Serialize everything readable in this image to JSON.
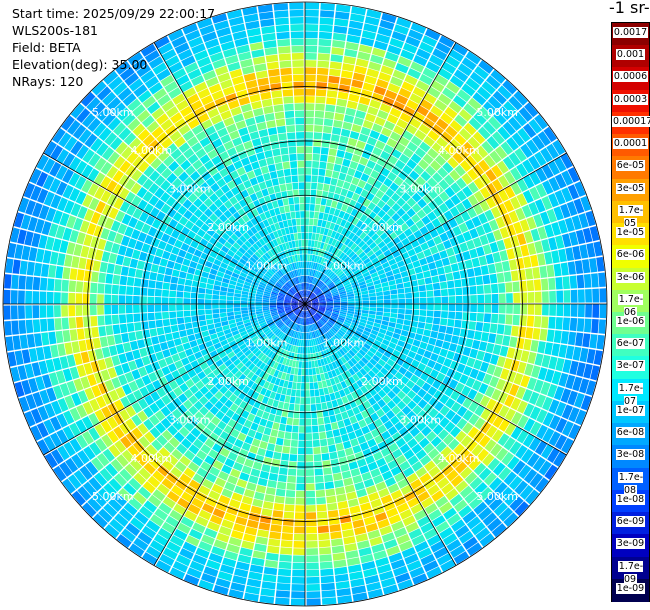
{
  "info": {
    "start_time": "Start time: 2025/09/29 22:00:17",
    "instrument": "WLS200s-181",
    "field": "Field: BETA",
    "elevation": "Elevation(deg): 35.00",
    "nrays": "NRays: 120"
  },
  "colorbar": {
    "title": "-1 sr-",
    "ticks": [
      "0.0017",
      "0.001",
      "0.0006",
      "0.0003",
      "0.00017",
      "0.0001",
      "6e-05",
      "3e-05",
      "1.7e-05",
      "1e-05",
      "6e-06",
      "3e-06",
      "1.7e-06",
      "1e-06",
      "6e-07",
      "3e-07",
      "1.7e-07",
      "1e-07",
      "6e-08",
      "3e-08",
      "1.7e-08",
      "1e-08",
      "6e-09",
      "3e-09",
      "1.7e-09",
      "1e-09"
    ],
    "colors": [
      "#8c0000",
      "#b00000",
      "#d40000",
      "#f01000",
      "#ff3000",
      "#ff5a00",
      "#ff7a00",
      "#ffa000",
      "#ffc000",
      "#ffe000",
      "#f0ff00",
      "#c8ff30",
      "#a0ff60",
      "#70ff90",
      "#40ffc0",
      "#20ffe0",
      "#00e8ff",
      "#00c8ff",
      "#00a8ff",
      "#0088ff",
      "#0060ff",
      "#0040ff",
      "#0020e0",
      "#0000c0",
      "#000090",
      "#000050"
    ]
  },
  "chart_data": {
    "type": "heatmap",
    "projection": "polar",
    "field": "BETA",
    "elevation_deg": 35.0,
    "nrays": 120,
    "range_km_max": 5.0,
    "range_rings_km": [
      1,
      2,
      3,
      4,
      5
    ],
    "ring_labels": [
      "1.00km",
      "2.00km",
      "3.00km",
      "4.00km",
      "5.00km"
    ],
    "radial_lines_deg": [
      0,
      30,
      60,
      90,
      120,
      150,
      180,
      210,
      240,
      270,
      300,
      330
    ],
    "scale": "log",
    "value_range": [
      1e-09,
      0.0017
    ],
    "radial_profile": [
      {
        "range_km": 0.0,
        "beta": 5e-09
      },
      {
        "range_km": 0.5,
        "beta": 3e-08
      },
      {
        "range_km": 1.0,
        "beta": 6e-08
      },
      {
        "range_km": 2.0,
        "beta": 1.2e-07
      },
      {
        "range_km": 3.0,
        "beta": 1.7e-07
      },
      {
        "range_km": 3.7,
        "beta": 1.7e-06
      },
      {
        "range_km": 4.3,
        "beta": 1.7e-07
      },
      {
        "range_km": 5.0,
        "beta": 4e-08
      }
    ]
  }
}
